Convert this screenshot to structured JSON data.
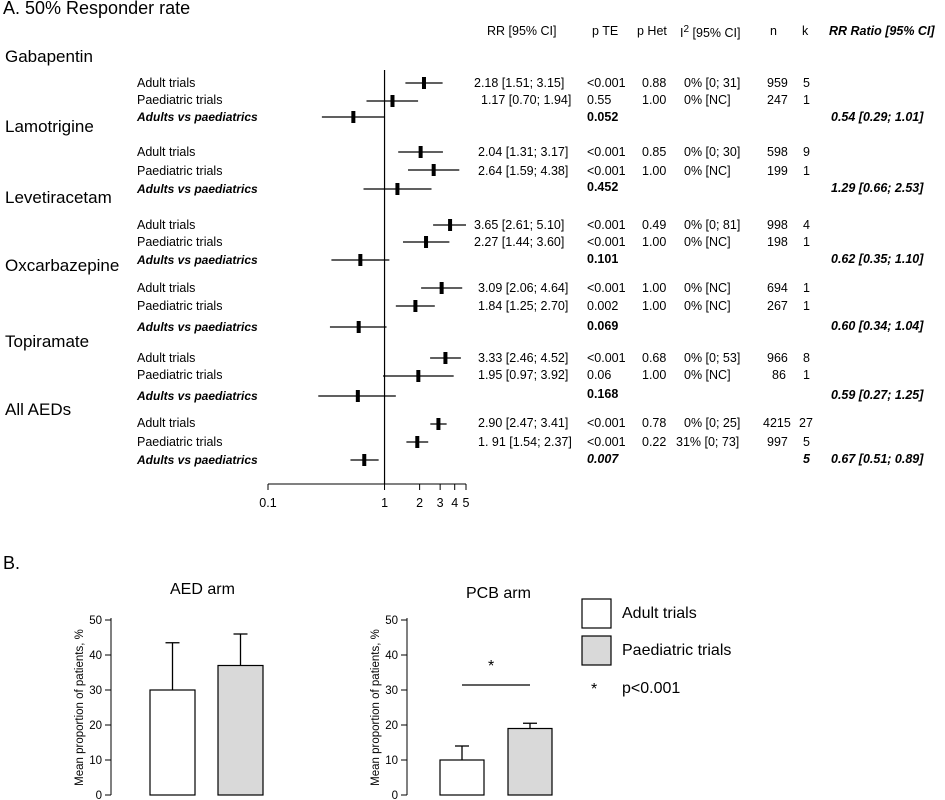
{
  "panelA": {
    "title": "A. 50% Responder rate",
    "headers": {
      "rr": "RR [95% CI]",
      "pte": "p TE",
      "phet": "p Het",
      "i2": "I",
      "i2_sup": "2",
      "i2_rest": " [95% CI]",
      "n": "n",
      "k": "k",
      "ratio": "RR Ratio  [95% CI]"
    },
    "axis": {
      "scale": "log",
      "ticks": [
        0.1,
        1,
        2,
        3,
        4,
        5
      ],
      "tick_labels": [
        "0.1",
        "1",
        "2",
        "3",
        "4",
        "5"
      ],
      "reference_line": 1
    },
    "groups": [
      {
        "name": "Gabapentin",
        "adult": {
          "label": "Adult trials",
          "rr": "2.18  [1.51; 3.15]",
          "pte": "<0.001",
          "phet": "0.88",
          "i2": "0% [0; 31]",
          "n": "959",
          "k": "5"
        },
        "paed": {
          "label": "Paediatric trials",
          "rr": "1.17 [0.70; 1.94]",
          "pte": "0.55",
          "phet": "1.00",
          "i2": "0% [NC]",
          "n": "247",
          "k": "1"
        },
        "comp": {
          "label": "Adults vs paediatrics",
          "pte": "0.052",
          "k": "",
          "ratio": "0.54 [0.29; 1.01]"
        }
      },
      {
        "name": "Lamotrigine",
        "adult": {
          "label": "Adult trials",
          "rr": "2.04 [1.31; 3.17]",
          "pte": "<0.001",
          "phet": "0.85",
          "i2": "0% [0; 30]",
          "n": "598",
          "k": "9"
        },
        "paed": {
          "label": "Paediatric trials",
          "rr": "2.64 [1.59; 4.38]",
          "pte": "<0.001",
          "phet": "1.00",
          "i2": "0% [NC]",
          "n": "199",
          "k": "1"
        },
        "comp": {
          "label": "Adults vs paediatrics",
          "pte": "0.452",
          "k": "",
          "ratio": "1.29 [0.66; 2.53]"
        }
      },
      {
        "name": "Levetiracetam",
        "adult": {
          "label": "Adult trials",
          "rr": "3.65 [2.61; 5.10]",
          "pte": "<0.001",
          "phet": "0.49",
          "i2": "0% [0; 81]",
          "n": "998",
          "k": "4"
        },
        "paed": {
          "label": "Paediatric trials",
          "rr": "2.27 [1.44; 3.60]",
          "pte": "<0.001",
          "phet": "1.00",
          "i2": "0% [NC]",
          "n": "198",
          "k": "1"
        },
        "comp": {
          "label": "Adults vs paediatrics",
          "pte": "0.101",
          "k": "",
          "ratio": "0.62 [0.35; 1.10]"
        }
      },
      {
        "name": "Oxcarbazepine",
        "adult": {
          "label": "Adult trials",
          "rr": "3.09 [2.06; 4.64]",
          "pte": "<0.001",
          "phet": "1.00",
          "i2": "0% [NC]",
          "n": "694",
          "k": "1"
        },
        "paed": {
          "label": "Paediatric trials",
          "rr": "1.84 [1.25; 2.70]",
          "pte": "0.002",
          "phet": "1.00",
          "i2": "0% [NC]",
          "n": "267",
          "k": "1"
        },
        "comp": {
          "label": "Adults vs paediatrics",
          "pte": "0.069",
          "k": "",
          "ratio": "0.60 [0.34; 1.04]"
        }
      },
      {
        "name": "Topiramate",
        "adult": {
          "label": "Adult trials",
          "rr": "3.33 [2.46; 4.52]",
          "pte": "<0.001",
          "phet": "0.68",
          "i2": "0% [0; 53]",
          "n": "966",
          "k": "8"
        },
        "paed": {
          "label": "Paediatric trials",
          "rr": "1.95 [0.97; 3.92]",
          "pte": "0.06",
          "phet": "1.00",
          "i2": "0% [NC]",
          "n": "86",
          "k": "1"
        },
        "comp": {
          "label": "Adults vs paediatrics",
          "pte": "0.168",
          "k": "",
          "ratio": "0.59 [0.27; 1.25]"
        }
      },
      {
        "name": "All AEDs",
        "adult": {
          "label": "Adult trials",
          "rr": "2.90 [2.47; 3.41]",
          "pte": "<0.001",
          "phet": "0.78",
          "i2": "0% [0; 25]",
          "n": "4215",
          "k": "27"
        },
        "paed": {
          "label": "Paediatric trials",
          "rr": "1. 91 [1.54; 2.37]",
          "pte": "<0.001",
          "phet": "0.22",
          "i2": "31% [0; 73]",
          "n": "997",
          "k": "5"
        },
        "comp": {
          "label": "Adults vs paediatrics",
          "pte": "0.007",
          "k": "5",
          "ratio": "0.67 [0.51; 0.89]"
        }
      }
    ]
  },
  "panelB": {
    "title": "B.",
    "ylabel": "Mean proportion of patients, %",
    "yticks": [
      "0",
      "10",
      "20",
      "30",
      "40",
      "50"
    ],
    "legend": {
      "adult": "Adult trials",
      "paed": "Paediatric trials",
      "star": "*",
      "sig": "p<0.001"
    },
    "colors": {
      "adult": "#ffffff",
      "paed": "#d9d9d9"
    }
  },
  "chart_data": [
    {
      "type": "scatter",
      "title": "A. 50% Responder rate",
      "xscale": "log",
      "xlim": [
        0.1,
        5
      ],
      "xticks": [
        0.1,
        1,
        2,
        3,
        4,
        5
      ],
      "series": [
        {
          "name": "Adult trials",
          "categories": [
            "Gabapentin",
            "Lamotrigine",
            "Levetiracetam",
            "Oxcarbazepine",
            "Topiramate",
            "All AEDs"
          ],
          "est": [
            2.18,
            2.04,
            3.65,
            3.09,
            3.33,
            2.9
          ],
          "lo": [
            1.51,
            1.31,
            2.61,
            2.06,
            2.46,
            2.47
          ],
          "hi": [
            3.15,
            3.17,
            5.1,
            4.64,
            4.52,
            3.41
          ]
        },
        {
          "name": "Paediatric trials",
          "categories": [
            "Gabapentin",
            "Lamotrigine",
            "Levetiracetam",
            "Oxcarbazepine",
            "Topiramate",
            "All AEDs"
          ],
          "est": [
            1.17,
            2.64,
            2.27,
            1.84,
            1.95,
            1.91
          ],
          "lo": [
            0.7,
            1.59,
            1.44,
            1.25,
            0.97,
            1.54
          ],
          "hi": [
            1.94,
            4.38,
            3.6,
            2.7,
            3.92,
            2.37
          ]
        },
        {
          "name": "Adults vs paediatrics",
          "categories": [
            "Gabapentin",
            "Lamotrigine",
            "Levetiracetam",
            "Oxcarbazepine",
            "Topiramate",
            "All AEDs"
          ],
          "est": [
            0.54,
            1.29,
            0.62,
            0.6,
            0.59,
            0.67
          ],
          "lo": [
            0.29,
            0.66,
            0.35,
            0.34,
            0.27,
            0.51
          ],
          "hi": [
            1.01,
            2.53,
            1.1,
            1.04,
            1.25,
            0.89
          ]
        }
      ]
    },
    {
      "type": "bar",
      "title": "AED arm",
      "ylabel": "Mean proportion of patients, %",
      "ylim": [
        0,
        50
      ],
      "categories": [
        "Adult trials",
        "Paediatric trials"
      ],
      "values": [
        30,
        37
      ],
      "error_upper": [
        43.5,
        46
      ]
    },
    {
      "type": "bar",
      "title": "PCB arm",
      "ylabel": "Mean proportion of patients, %",
      "ylim": [
        0,
        50
      ],
      "categories": [
        "Adult trials",
        "Paediatric trials"
      ],
      "values": [
        10,
        19
      ],
      "error_upper": [
        14,
        20.5
      ],
      "annotation": "*"
    }
  ]
}
